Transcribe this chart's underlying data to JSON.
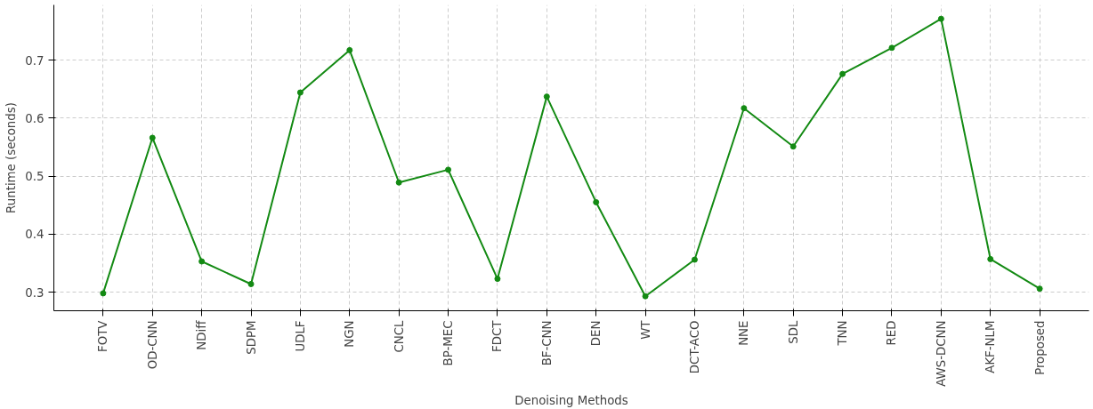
{
  "chart_data": {
    "type": "line",
    "xlabel": "Denoising Methods",
    "ylabel": "Runtime (seconds)",
    "categories": [
      "FOTV",
      "OD-CNN",
      "NDiff",
      "SDPM",
      "UDLF",
      "NGN",
      "CNCL",
      "BP-MEC",
      "FDCT",
      "BF-CNN",
      "DEN",
      "WT",
      "DCT-ACO",
      "NNE",
      "SDL",
      "TNN",
      "RED",
      "AWS-DCNN",
      "AKF-NLM",
      "Proposed"
    ],
    "series": [
      {
        "color": "#138a13",
        "values": [
          0.298,
          0.566,
          0.353,
          0.314,
          0.644,
          0.717,
          0.489,
          0.511,
          0.323,
          0.637,
          0.455,
          0.293,
          0.356,
          0.617,
          0.551,
          0.676,
          0.721,
          0.771,
          0.357,
          0.306
        ]
      }
    ],
    "ylim": [
      0.268,
      0.795
    ],
    "yticks": [
      0.3,
      0.4,
      0.5,
      0.6,
      0.7
    ],
    "grid": true,
    "marker": "circle",
    "line_style": "solid"
  }
}
